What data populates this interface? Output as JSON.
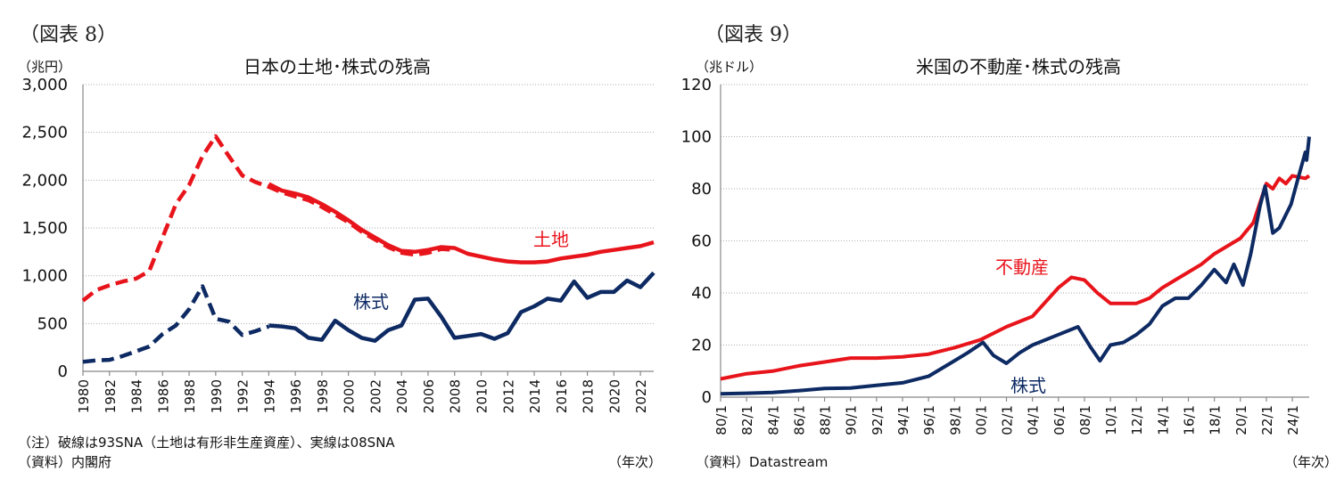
{
  "chart_data": [
    {
      "type": "line",
      "figure_label": "（図表 8）",
      "title": "日本の土地･株式の残高",
      "ylabel": "（兆円）",
      "xlabel": "（年次）",
      "ylim": [
        0,
        3000
      ],
      "xlim": [
        1980,
        2023
      ],
      "yticks": [
        0,
        500,
        1000,
        1500,
        2000,
        2500,
        3000
      ],
      "ytick_labels": [
        "0",
        "500",
        "1,000",
        "1,500",
        "2,000",
        "2,500",
        "3,000"
      ],
      "xtick_labels": [
        "1980",
        "1982",
        "1984",
        "1986",
        "1988",
        "1990",
        "1992",
        "1994",
        "1996",
        "1998",
        "2000",
        "2002",
        "2004",
        "2006",
        "2008",
        "2010",
        "2012",
        "2014",
        "2016",
        "2018",
        "2020",
        "2022"
      ],
      "grid": true,
      "notes": [
        "（注）破線は93SNA（土地は有形非生産資産）、実線は08SNA",
        "（資料）内閣府"
      ],
      "series": [
        {
          "name": "土地",
          "style": "dashed",
          "color": "#e8141b",
          "x": [
            1980,
            1981,
            1982,
            1983,
            1984,
            1985,
            1986,
            1987,
            1988,
            1989,
            1990,
            1991,
            1992,
            1993,
            1994,
            1995,
            1996,
            1997,
            1998,
            1999,
            2000,
            2001,
            2002,
            2003,
            2004,
            2005,
            2006,
            2007,
            2008
          ],
          "y": [
            740,
            850,
            900,
            940,
            970,
            1050,
            1400,
            1750,
            1950,
            2250,
            2460,
            2250,
            2050,
            1980,
            1930,
            1870,
            1830,
            1790,
            1720,
            1640,
            1560,
            1460,
            1380,
            1300,
            1240,
            1220,
            1240,
            1280,
            1270
          ]
        },
        {
          "name": "土地",
          "style": "solid",
          "color": "#e8141b",
          "x": [
            1994,
            1995,
            1996,
            1997,
            1998,
            1999,
            2000,
            2001,
            2002,
            2003,
            2004,
            2005,
            2006,
            2007,
            2008,
            2009,
            2010,
            2011,
            2012,
            2013,
            2014,
            2015,
            2016,
            2017,
            2018,
            2019,
            2020,
            2021,
            2022,
            2023
          ],
          "y": [
            1960,
            1890,
            1860,
            1820,
            1750,
            1670,
            1580,
            1480,
            1400,
            1320,
            1260,
            1250,
            1270,
            1300,
            1290,
            1230,
            1200,
            1170,
            1150,
            1140,
            1140,
            1150,
            1180,
            1200,
            1220,
            1250,
            1270,
            1290,
            1310,
            1350
          ]
        },
        {
          "name": "株式",
          "style": "dashed",
          "color": "#0d2a63",
          "x": [
            1980,
            1981,
            1982,
            1983,
            1984,
            1985,
            1986,
            1987,
            1988,
            1989,
            1990,
            1991,
            1992,
            1993,
            1994
          ],
          "y": [
            100,
            115,
            120,
            160,
            210,
            260,
            390,
            480,
            650,
            890,
            550,
            520,
            380,
            420,
            470
          ]
        },
        {
          "name": "株式",
          "style": "solid",
          "color": "#0d2a63",
          "x": [
            1994,
            1995,
            1996,
            1997,
            1998,
            1999,
            2000,
            2001,
            2002,
            2003,
            2004,
            2005,
            2006,
            2007,
            2008,
            2009,
            2010,
            2011,
            2012,
            2013,
            2014,
            2015,
            2016,
            2017,
            2018,
            2019,
            2020,
            2021,
            2022,
            2023
          ],
          "y": [
            480,
            470,
            450,
            350,
            330,
            530,
            430,
            350,
            320,
            430,
            480,
            750,
            760,
            570,
            350,
            370,
            390,
            340,
            400,
            620,
            680,
            760,
            740,
            940,
            770,
            830,
            830,
            950,
            880,
            1030
          ]
        }
      ],
      "labels": [
        {
          "text": "土地",
          "color": "#e8141b"
        },
        {
          "text": "株式",
          "color": "#0d2a63"
        }
      ]
    },
    {
      "type": "line",
      "figure_label": "（図表 9）",
      "title": "米国の不動産･株式の残高",
      "ylabel": "（兆ドル）",
      "xlabel": "（年次）",
      "ylim": [
        0,
        120
      ],
      "xlim": [
        1980,
        2025.3
      ],
      "yticks": [
        0,
        20,
        40,
        60,
        80,
        100,
        120
      ],
      "ytick_labels": [
        "0",
        "20",
        "40",
        "60",
        "80",
        "100",
        "120"
      ],
      "xtick_labels": [
        "80/1",
        "82/1",
        "84/1",
        "86/1",
        "88/1",
        "90/1",
        "92/1",
        "94/1",
        "96/1",
        "98/1",
        "00/1",
        "02/1",
        "04/1",
        "06/1",
        "08/1",
        "10/1",
        "12/1",
        "14/1",
        "16/1",
        "18/1",
        "20/1",
        "22/1",
        "24/1"
      ],
      "grid": true,
      "notes": [
        "（資料）Datastream"
      ],
      "series": [
        {
          "name": "不動産",
          "color": "#e8141b",
          "x": [
            1980,
            1982,
            1984,
            1986,
            1988,
            1990,
            1992,
            1994,
            1996,
            1998,
            2000,
            2002,
            2004,
            2006,
            2007,
            2008,
            2009,
            2010,
            2011,
            2012,
            2013,
            2014,
            2015,
            2016,
            2017,
            2018,
            2019,
            2020,
            2021,
            2022,
            2022.5,
            2023,
            2023.5,
            2024,
            2025,
            2025.3
          ],
          "y": [
            7,
            9,
            10,
            12,
            13.5,
            15,
            15,
            15.5,
            16.5,
            19,
            22,
            27,
            31,
            42,
            46,
            45,
            40,
            36,
            36,
            36,
            38,
            42,
            45,
            48,
            51,
            55,
            58,
            61,
            67,
            82,
            80,
            84,
            82,
            85,
            84,
            85
          ]
        },
        {
          "name": "株式",
          "color": "#0d2a63",
          "x": [
            1980,
            1982,
            1984,
            1986,
            1988,
            1990,
            1992,
            1994,
            1996,
            1998,
            1999,
            2000.2,
            2001,
            2002,
            2003,
            2004,
            2006,
            2007.5,
            2008.5,
            2009.2,
            2010,
            2011,
            2012,
            2013,
            2014,
            2015,
            2016,
            2017,
            2018,
            2018.9,
            2019.5,
            2020.2,
            2020.8,
            2021.5,
            2021.9,
            2022.5,
            2023,
            2023.9,
            2024.5,
            2025,
            2025.1,
            2025.3
          ],
          "y": [
            1.3,
            1.5,
            1.8,
            2.5,
            3.3,
            3.5,
            4.5,
            5.5,
            8,
            14,
            17,
            21,
            16,
            13,
            17,
            20,
            24,
            27,
            19,
            14,
            20,
            21,
            24,
            28,
            35,
            38,
            38,
            43,
            49,
            44,
            51,
            43,
            55,
            73,
            81,
            63,
            65,
            74,
            85,
            94,
            91,
            100
          ]
        }
      ],
      "labels": [
        {
          "text": "不動産",
          "color": "#e8141b"
        },
        {
          "text": "株式",
          "color": "#0d2a63"
        }
      ]
    }
  ]
}
